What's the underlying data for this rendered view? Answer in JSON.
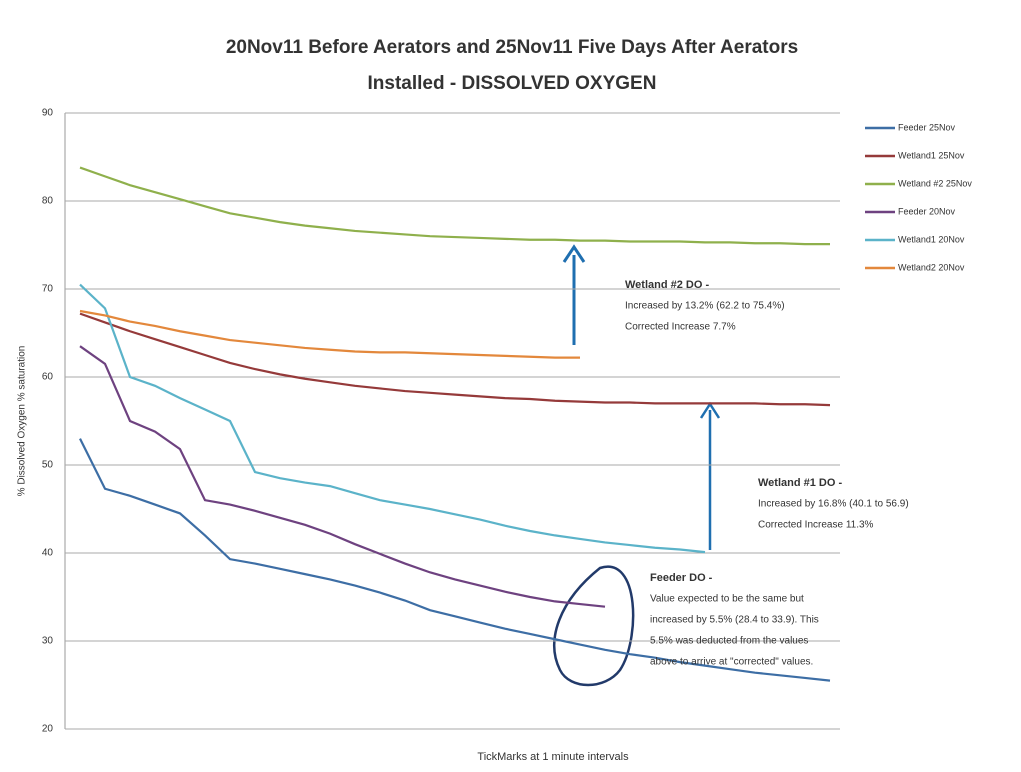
{
  "chart_data": {
    "type": "line",
    "title": [
      "20Nov11 Before Aerators and 25Nov11 Five Days After Aerators",
      "Installed - DISSOLVED OXYGEN"
    ],
    "x_label": "TickMarks at 1 minute intervals",
    "y_label": "% Dissolved Oxygen % saturation",
    "categories": [
      null,
      null,
      null,
      null,
      null,
      null,
      null,
      null,
      null,
      null,
      null,
      null,
      null,
      null,
      null,
      null,
      null,
      null,
      null,
      null,
      null,
      null,
      null,
      null,
      null,
      null,
      null,
      null,
      null,
      null,
      null
    ],
    "ylim": [
      20,
      90
    ],
    "yticks": [
      20,
      30,
      40,
      50,
      60,
      70,
      80,
      90
    ],
    "grid": true,
    "legend": "right",
    "series": [
      {
        "name": "Feeder 25Nov",
        "color": "#3d6ea5",
        "values": [
          53,
          47.3,
          46.5,
          45.5,
          44.5,
          42,
          39.3,
          38.8,
          38.2,
          37.6,
          37,
          36.3,
          35.5,
          34.6,
          33.5,
          32.8,
          32.1,
          31.4,
          30.8,
          30.2,
          29.6,
          29,
          28.5,
          28.1,
          27.6,
          27.2,
          26.8,
          26.4,
          26.1,
          25.8,
          25.5
        ]
      },
      {
        "name": "Wetland1 25Nov",
        "color": "#953a3a",
        "values": [
          67.2,
          66.2,
          65.2,
          64.3,
          63.4,
          62.5,
          61.6,
          60.9,
          60.3,
          59.8,
          59.4,
          59,
          58.7,
          58.4,
          58.2,
          58,
          57.8,
          57.6,
          57.5,
          57.3,
          57.2,
          57.1,
          57.1,
          57,
          57,
          57,
          57,
          57,
          56.9,
          56.9,
          56.8
        ]
      },
      {
        "name": "Wetland #2 25Nov",
        "color": "#8fb04c",
        "values": [
          83.8,
          82.8,
          81.8,
          81,
          80.2,
          79.4,
          78.6,
          78.1,
          77.6,
          77.2,
          76.9,
          76.6,
          76.4,
          76.2,
          76,
          75.9,
          75.8,
          75.7,
          75.6,
          75.6,
          75.5,
          75.5,
          75.4,
          75.4,
          75.4,
          75.3,
          75.3,
          75.2,
          75.2,
          75.1,
          75.1
        ]
      },
      {
        "name": "Feeder 20Nov",
        "color": "#6e4280",
        "values": [
          63.5,
          61.5,
          55,
          53.8,
          51.8,
          46,
          45.5,
          44.8,
          44,
          43.2,
          42.2,
          41,
          39.9,
          38.8,
          37.8,
          37,
          36.3,
          35.6,
          35,
          34.5,
          34.2,
          33.9,
          null,
          null,
          null,
          null,
          null,
          null,
          null,
          null,
          null
        ]
      },
      {
        "name": "Wetland1 20Nov",
        "color": "#5bb3c9",
        "values": [
          70.5,
          67.8,
          60,
          59,
          57.6,
          56.3,
          55,
          49.2,
          48.5,
          48,
          47.6,
          46.8,
          46,
          45.5,
          45,
          44.4,
          43.8,
          43.1,
          42.5,
          42,
          41.6,
          41.2,
          40.9,
          40.6,
          40.4,
          40.1,
          null,
          null,
          null,
          null,
          null
        ]
      },
      {
        "name": "Wetland2 20Nov",
        "color": "#e3883c",
        "values": [
          67.5,
          67,
          66.3,
          65.8,
          65.2,
          64.7,
          64.2,
          63.9,
          63.6,
          63.3,
          63.1,
          62.9,
          62.8,
          62.8,
          62.7,
          62.6,
          62.5,
          62.4,
          62.3,
          62.2,
          62.2,
          null,
          null,
          null,
          null,
          null,
          null,
          null,
          null,
          null,
          null
        ]
      }
    ],
    "annotations": [
      {
        "lines": [
          "Wetland #2 DO -",
          "Increased by 13.2% (62.2 to 75.4%)",
          "Corrected Increase 7.7%"
        ]
      },
      {
        "lines": [
          "Wetland #1 DO -",
          "Increased by 16.8% (40.1 to 56.9)",
          "Corrected Increase 11.3%"
        ]
      },
      {
        "lines": [
          "Feeder DO -",
          "Value expected to be the same but",
          "increased by 5.5% (28.4 to 33.9). This",
          "5.5% was deducted from the values",
          "above to arrive at \"corrected\" values."
        ]
      }
    ]
  }
}
